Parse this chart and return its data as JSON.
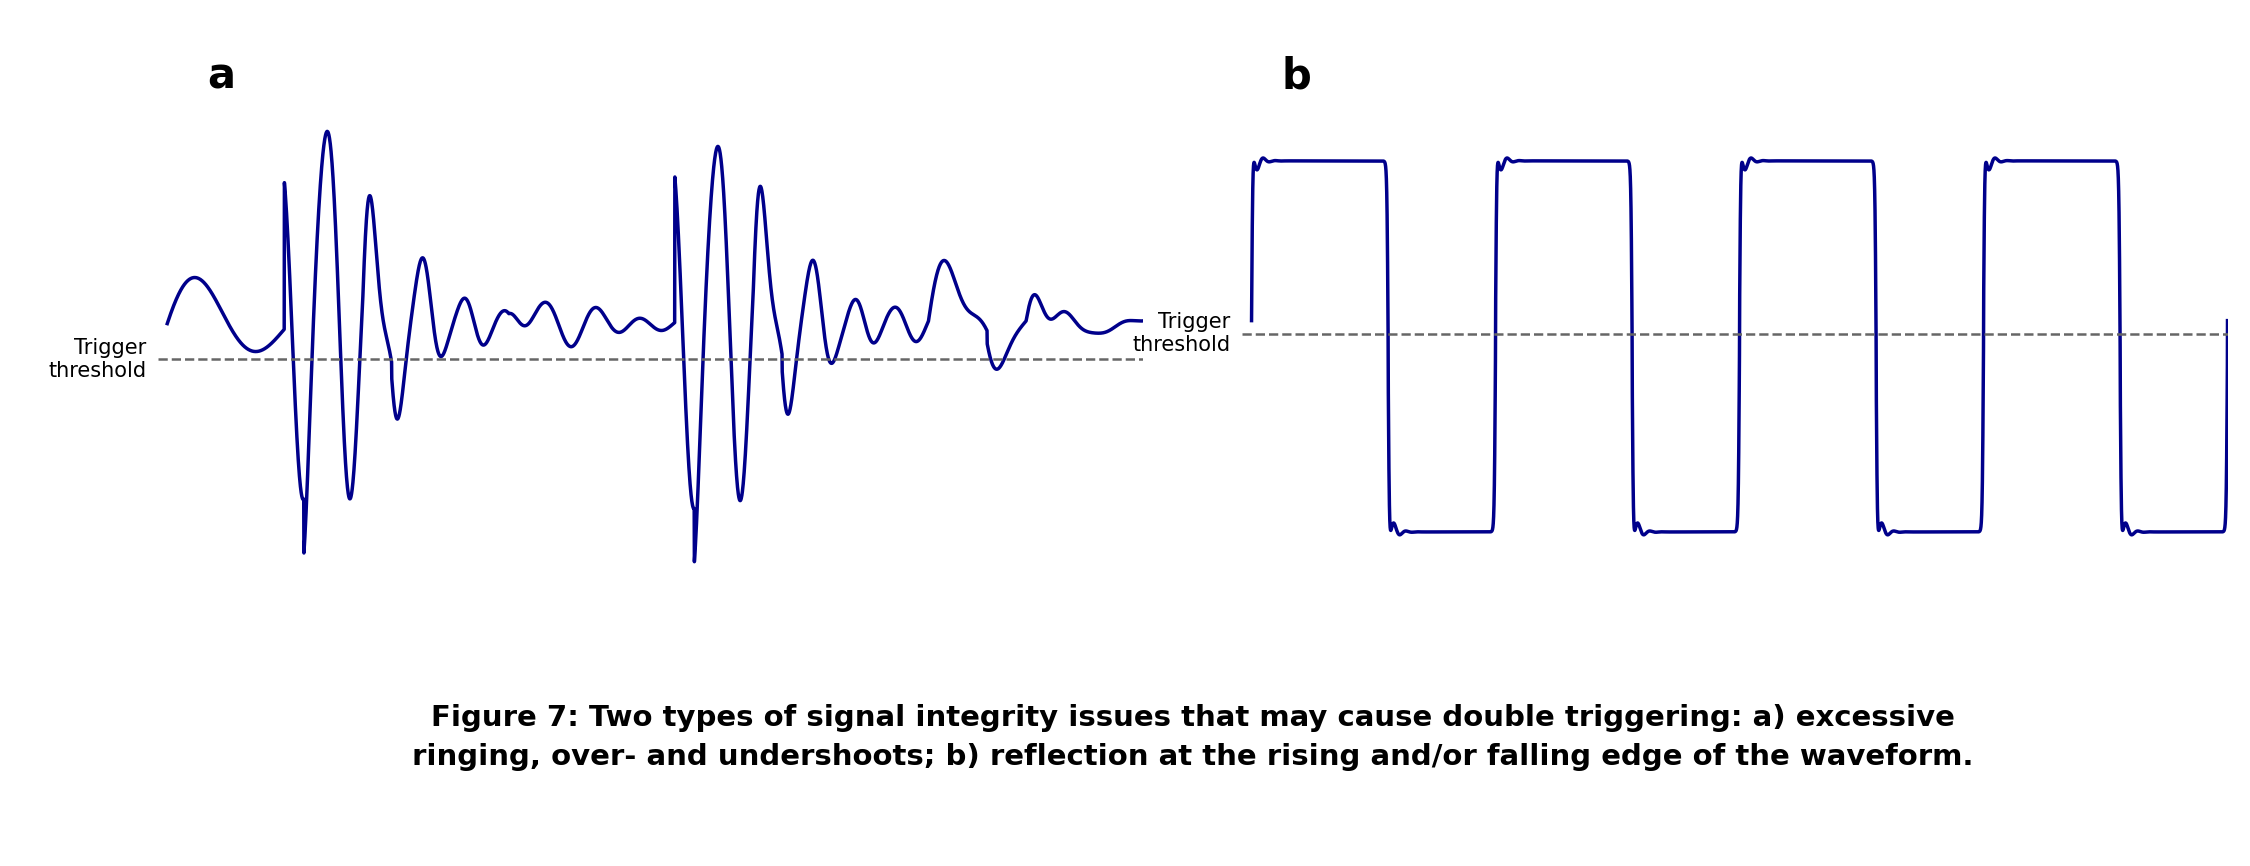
{
  "background_color": "#ffffff",
  "line_color": "#00008B",
  "line_width": 2.5,
  "threshold_color": "#666666",
  "threshold_linestyle": "--",
  "threshold_linewidth": 1.8,
  "label_a": "a",
  "label_b": "b",
  "trigger_text": "Trigger\nthreshold",
  "caption_line1": "Figure 7: Two types of signal integrity issues that may cause double triggering: a) excessive",
  "caption_line2": "ringing, over- and undershoots; b) reflection at the rising and/or falling edge of the waveform.",
  "caption_fontsize": 21,
  "caption_fontweight": "bold",
  "label_fontsize": 30,
  "label_fontweight": "bold",
  "trigger_fontsize": 15,
  "ylim_a": [
    -1.5,
    1.5
  ],
  "ylim_b": [
    -1.5,
    1.5
  ],
  "threshold_a": -0.18,
  "threshold_b": -0.05
}
